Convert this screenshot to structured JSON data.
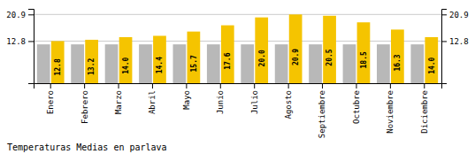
{
  "chart_data": {
    "type": "bar",
    "title": "Temperaturas Medias en parlava",
    "categories": [
      "Enero",
      "Febrero",
      "Marzo",
      "Abril",
      "Mayo",
      "Junio",
      "Julio",
      "Agosto",
      "Septiembre",
      "Octubre",
      "Noviembre",
      "Diciembre"
    ],
    "series": [
      {
        "color": "#B8B8B8",
        "values": [
          11.8,
          11.8,
          11.8,
          11.8,
          11.8,
          11.8,
          11.8,
          11.8,
          11.8,
          11.8,
          11.8,
          11.8
        ]
      },
      {
        "color": "#F5C400",
        "values": [
          12.8,
          13.2,
          14.0,
          14.4,
          15.7,
          17.6,
          20.0,
          20.9,
          20.5,
          18.5,
          16.3,
          14.0
        ],
        "value_labels": [
          "12.8",
          "13.2",
          "14.0",
          "14.4",
          "15.7",
          "17.6",
          "20.0",
          "20.9",
          "20.5",
          "18.5",
          "16.3",
          "14.0"
        ],
        "data_labels": true
      }
    ],
    "ylim": [
      0,
      22.6
    ],
    "yticks": [
      12.8,
      20.9
    ],
    "y2lim": [
      0,
      22.6
    ],
    "y2ticks": [
      12.8,
      20.9
    ],
    "grid": true
  }
}
